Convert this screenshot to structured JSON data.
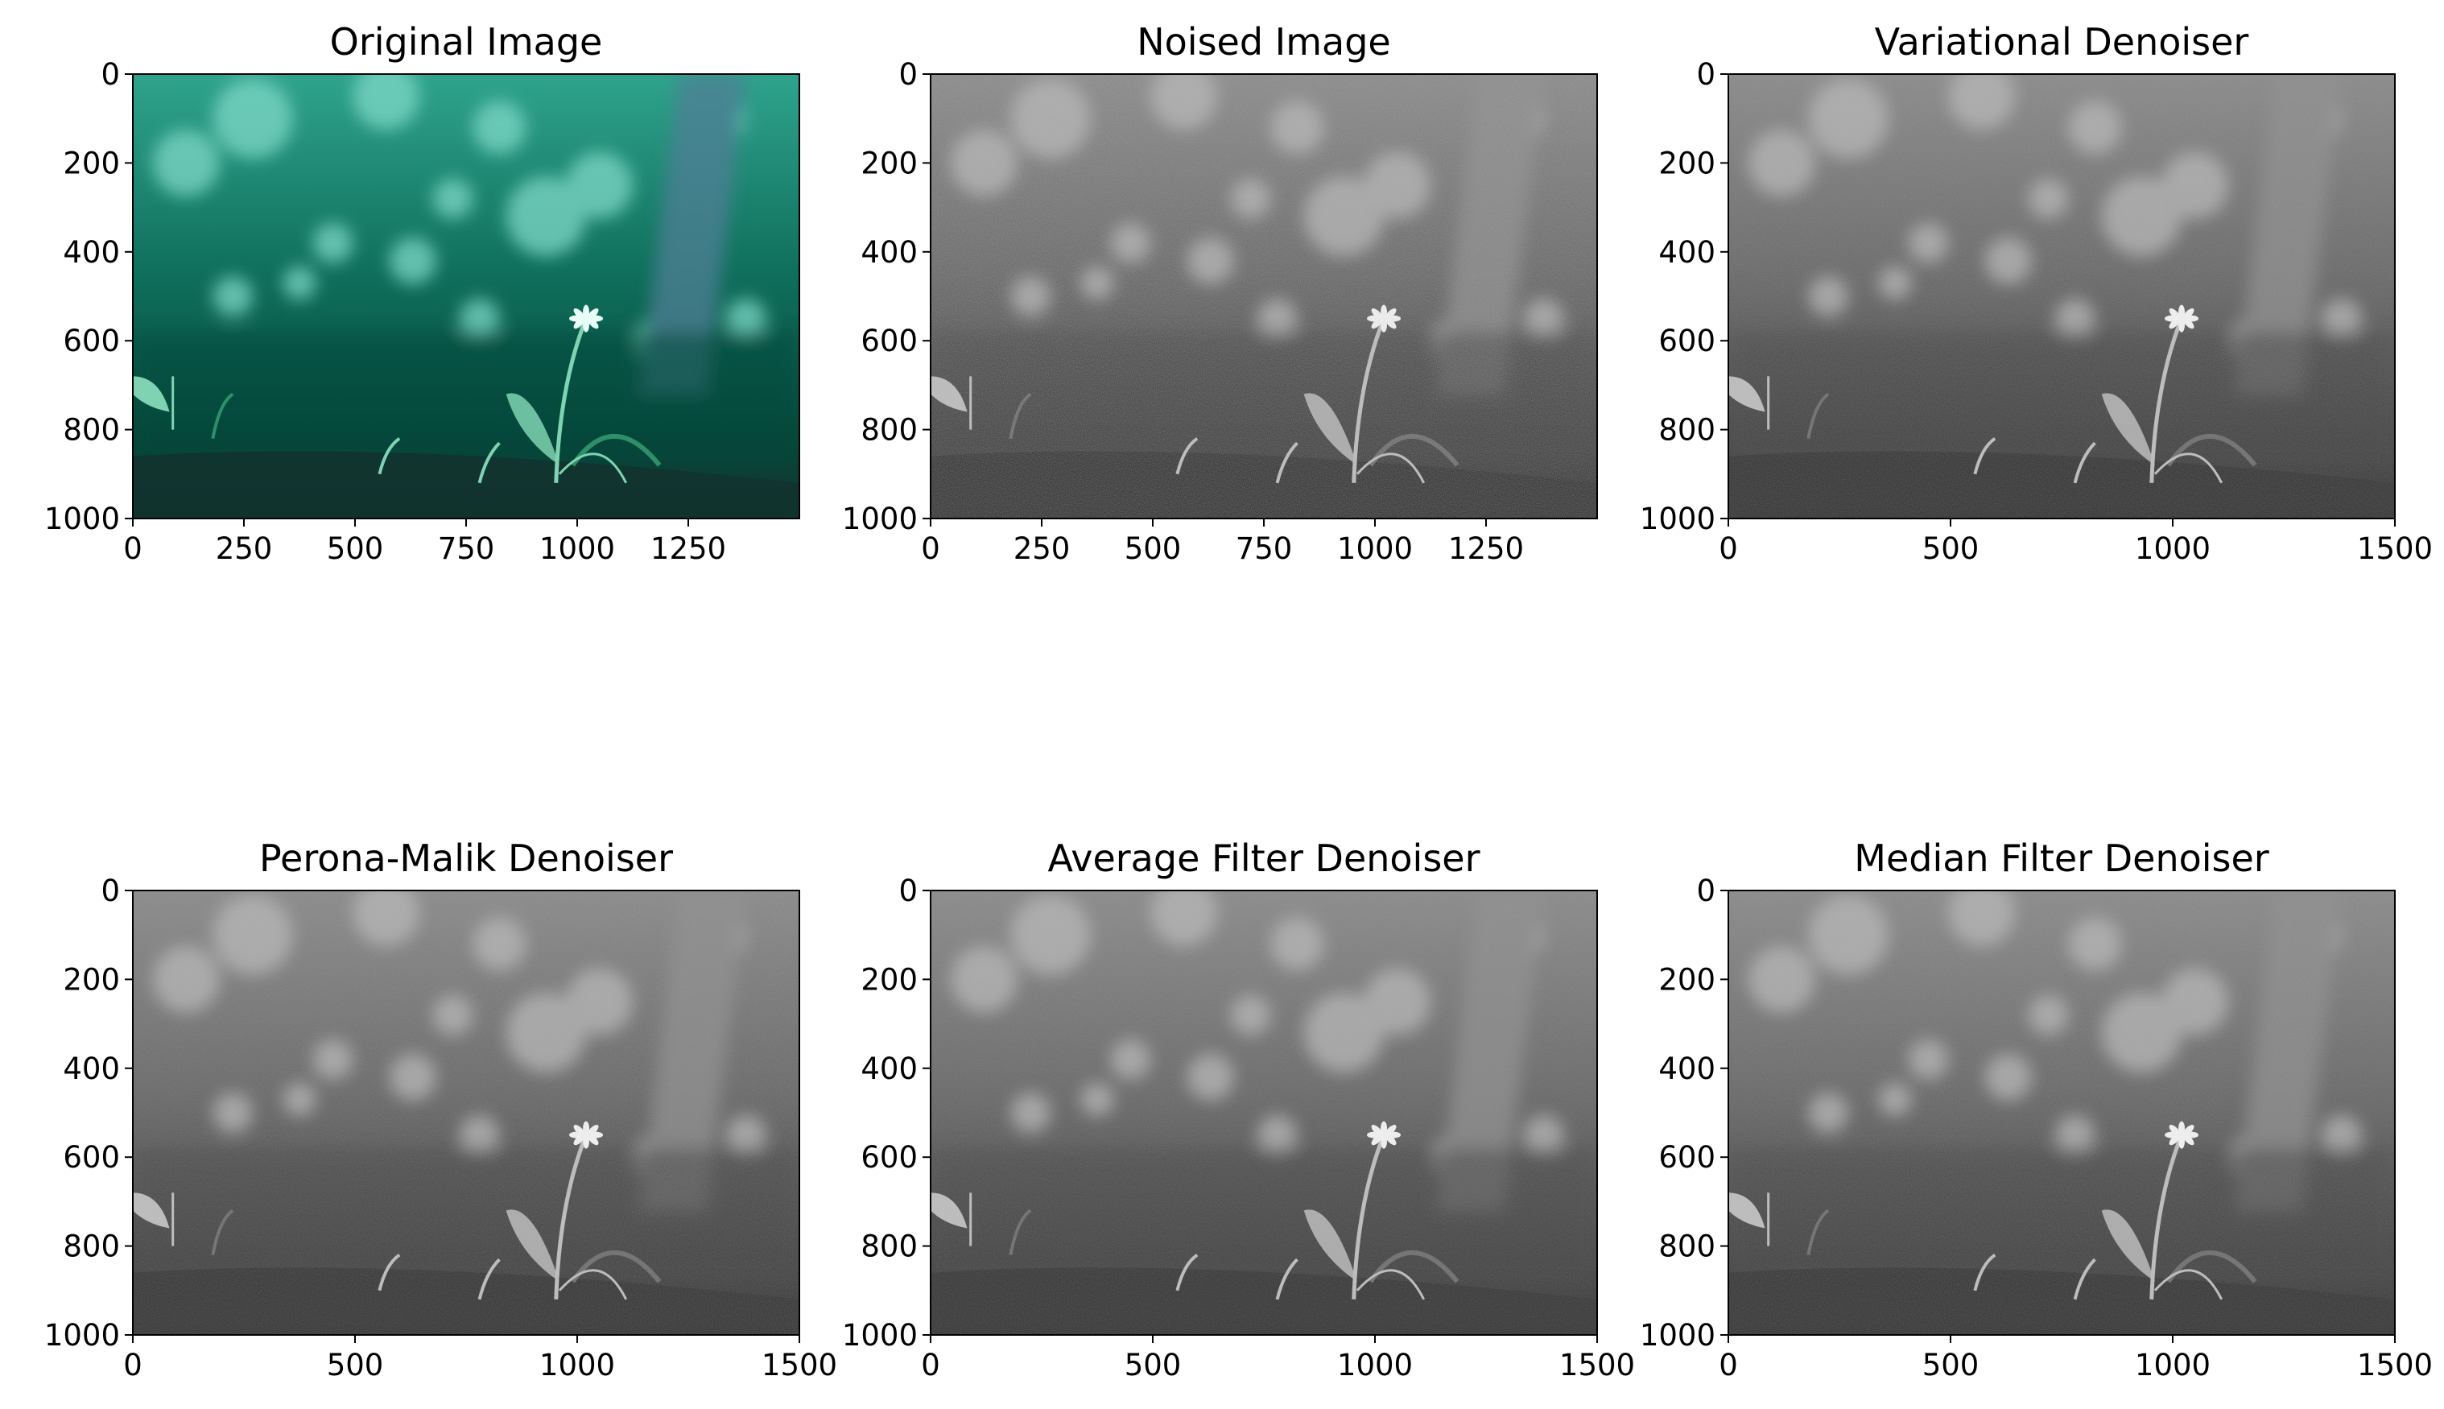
{
  "chart_data": [
    {
      "type": "image",
      "title": "Original Image",
      "colormap": "color",
      "ylim": [
        1000,
        0
      ],
      "xticks": [
        "0",
        "250",
        "500",
        "750",
        "1000",
        "1250"
      ],
      "yticks": [
        "0",
        "200",
        "400",
        "600",
        "800",
        "1000"
      ],
      "xtick_values": [
        0,
        250,
        500,
        750,
        1000,
        1250
      ],
      "ytick_values": [
        0,
        200,
        400,
        600,
        800,
        1000
      ],
      "xlim": [
        0,
        1500
      ]
    },
    {
      "type": "image",
      "title": "Noised Image",
      "colormap": "gray",
      "ylim": [
        1000,
        0
      ],
      "xticks": [
        "0",
        "250",
        "500",
        "750",
        "1000",
        "1250"
      ],
      "yticks": [
        "0",
        "200",
        "400",
        "600",
        "800",
        "1000"
      ],
      "xtick_values": [
        0,
        250,
        500,
        750,
        1000,
        1250
      ],
      "ytick_values": [
        0,
        200,
        400,
        600,
        800,
        1000
      ],
      "xlim": [
        0,
        1500
      ]
    },
    {
      "type": "image",
      "title": "Variational Denoiser",
      "colormap": "gray",
      "ylim": [
        1000,
        0
      ],
      "xticks": [
        "0",
        "500",
        "1000",
        "1500"
      ],
      "yticks": [
        "0",
        "200",
        "400",
        "600",
        "800",
        "1000"
      ],
      "xtick_values": [
        0,
        500,
        1000,
        1500
      ],
      "ytick_values": [
        0,
        200,
        400,
        600,
        800,
        1000
      ],
      "xlim": [
        0,
        1500
      ]
    },
    {
      "type": "image",
      "title": "Perona-Malik Denoiser",
      "colormap": "gray",
      "ylim": [
        1000,
        0
      ],
      "xticks": [
        "0",
        "500",
        "1000",
        "1500"
      ],
      "yticks": [
        "0",
        "200",
        "400",
        "600",
        "800",
        "1000"
      ],
      "xtick_values": [
        0,
        500,
        1000,
        1500
      ],
      "ytick_values": [
        0,
        200,
        400,
        600,
        800,
        1000
      ],
      "xlim": [
        0,
        1500
      ]
    },
    {
      "type": "image",
      "title": "Average Filter Denoiser",
      "colormap": "gray",
      "ylim": [
        1000,
        0
      ],
      "xticks": [
        "0",
        "500",
        "1000",
        "1500"
      ],
      "yticks": [
        "0",
        "200",
        "400",
        "600",
        "800",
        "1000"
      ],
      "xtick_values": [
        0,
        500,
        1000,
        1500
      ],
      "ytick_values": [
        0,
        200,
        400,
        600,
        800,
        1000
      ],
      "xlim": [
        0,
        1500
      ]
    },
    {
      "type": "image",
      "title": "Median Filter Denoiser",
      "colormap": "gray",
      "ylim": [
        1000,
        0
      ],
      "xticks": [
        "0",
        "500",
        "1000",
        "1500"
      ],
      "yticks": [
        "0",
        "200",
        "400",
        "600",
        "800",
        "1000"
      ],
      "xtick_values": [
        0,
        500,
        1000,
        1500
      ],
      "ytick_values": [
        0,
        200,
        400,
        600,
        800,
        1000
      ],
      "xlim": [
        0,
        1500
      ]
    }
  ]
}
